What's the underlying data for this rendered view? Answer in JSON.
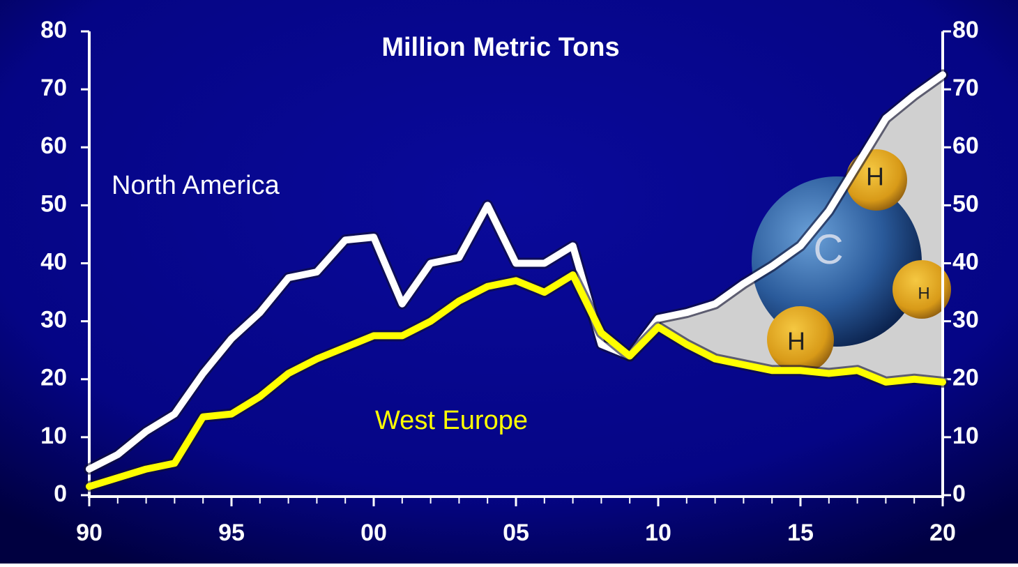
{
  "chart_data": {
    "type": "line",
    "title": "Million Metric Tons",
    "x": [
      1990,
      1991,
      1992,
      1993,
      1994,
      1995,
      1996,
      1997,
      1998,
      1999,
      2000,
      2001,
      2002,
      2003,
      2004,
      2005,
      2006,
      2007,
      2008,
      2009,
      2010,
      2011,
      2012,
      2013,
      2014,
      2015,
      2016,
      2017,
      2018,
      2019,
      2020
    ],
    "series": [
      {
        "name": "North America",
        "color": "#ffffff",
        "values": [
          4.5,
          7,
          11,
          14,
          21,
          27,
          31.5,
          37.5,
          38.5,
          44,
          44.5,
          33,
          40,
          41,
          50,
          40,
          40,
          43,
          26,
          24,
          30.5,
          31.5,
          33,
          36.5,
          39.5,
          43,
          49,
          57,
          65,
          69,
          72.5
        ]
      },
      {
        "name": "West Europe",
        "color": "#ffff00",
        "values": [
          1.5,
          3,
          4.5,
          5.5,
          13.5,
          14,
          17,
          21,
          23.5,
          25.5,
          27.5,
          27.5,
          30,
          33.5,
          36,
          37,
          35,
          38,
          28,
          24,
          29,
          26,
          23.5,
          22.5,
          21.5,
          21.5,
          21,
          21.5,
          19.5,
          20,
          19.5
        ]
      }
    ],
    "xlim": [
      1990,
      2020
    ],
    "xticks": [
      {
        "value": 1990,
        "label": "90"
      },
      {
        "value": 1995,
        "label": "95"
      },
      {
        "value": 2000,
        "label": "00"
      },
      {
        "value": 2005,
        "label": "05"
      },
      {
        "value": 2010,
        "label": "10"
      },
      {
        "value": 2015,
        "label": "15"
      },
      {
        "value": 2020,
        "label": "20"
      }
    ],
    "ylim": [
      0,
      80
    ],
    "yticks": [
      0,
      10,
      20,
      30,
      40,
      50,
      60,
      70,
      80
    ],
    "y2lim": [
      0,
      80
    ],
    "y2ticks": [
      0,
      10,
      20,
      30,
      40,
      50,
      60,
      70,
      80
    ],
    "grid": false
  },
  "molecule": {
    "atoms": [
      "C",
      "H",
      "H",
      "H"
    ]
  }
}
